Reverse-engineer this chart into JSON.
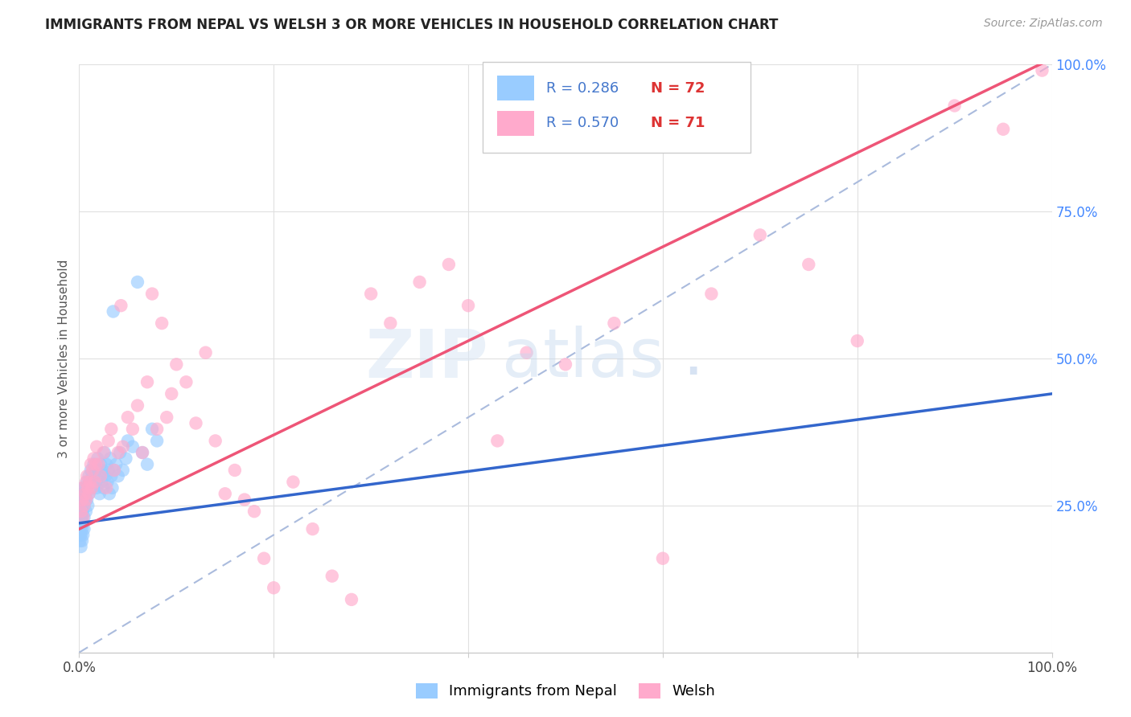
{
  "title": "IMMIGRANTS FROM NEPAL VS WELSH 3 OR MORE VEHICLES IN HOUSEHOLD CORRELATION CHART",
  "source_text": "Source: ZipAtlas.com",
  "ylabel": "3 or more Vehicles in Household",
  "xlim": [
    0,
    1.0
  ],
  "ylim": [
    0,
    1.0
  ],
  "xtick_values": [
    0.0,
    0.2,
    0.4,
    0.6,
    0.8,
    1.0
  ],
  "xtick_labels_shown": {
    "0.0": "0.0%",
    "1.0": "100.0%"
  },
  "ytick_right_vals": [
    0.0,
    0.25,
    0.5,
    0.75,
    1.0
  ],
  "ytick_right_labels": [
    "",
    "25.0%",
    "50.0%",
    "75.0%",
    "100.0%"
  ],
  "grid_color": "#e0e0e0",
  "background_color": "#ffffff",
  "nepal_color": "#99ccff",
  "welsh_color": "#ffaacc",
  "nepal_line_color": "#3366cc",
  "welsh_line_color": "#ee5577",
  "diagonal_color": "#aabbdd",
  "R_nepal": 0.286,
  "N_nepal": 72,
  "R_welsh": 0.57,
  "N_welsh": 71,
  "nepal_x": [
    0.0005,
    0.0008,
    0.001,
    0.0012,
    0.0015,
    0.0018,
    0.002,
    0.002,
    0.0022,
    0.0025,
    0.003,
    0.003,
    0.003,
    0.003,
    0.003,
    0.0035,
    0.004,
    0.004,
    0.004,
    0.004,
    0.005,
    0.005,
    0.005,
    0.005,
    0.006,
    0.006,
    0.007,
    0.007,
    0.008,
    0.008,
    0.009,
    0.009,
    0.01,
    0.01,
    0.011,
    0.012,
    0.013,
    0.014,
    0.015,
    0.016,
    0.017,
    0.018,
    0.019,
    0.02,
    0.021,
    0.022,
    0.023,
    0.024,
    0.025,
    0.026,
    0.027,
    0.028,
    0.029,
    0.03,
    0.031,
    0.032,
    0.033,
    0.034,
    0.035,
    0.036,
    0.038,
    0.04,
    0.042,
    0.045,
    0.048,
    0.05,
    0.055,
    0.06,
    0.065,
    0.07,
    0.075,
    0.08
  ],
  "nepal_y": [
    0.22,
    0.19,
    0.2,
    0.21,
    0.23,
    0.18,
    0.24,
    0.2,
    0.22,
    0.26,
    0.25,
    0.23,
    0.21,
    0.19,
    0.27,
    0.24,
    0.26,
    0.22,
    0.28,
    0.2,
    0.25,
    0.23,
    0.27,
    0.21,
    0.26,
    0.28,
    0.27,
    0.24,
    0.29,
    0.26,
    0.28,
    0.25,
    0.3,
    0.27,
    0.29,
    0.31,
    0.28,
    0.3,
    0.32,
    0.29,
    0.31,
    0.28,
    0.33,
    0.3,
    0.27,
    0.32,
    0.29,
    0.31,
    0.28,
    0.34,
    0.3,
    0.32,
    0.29,
    0.31,
    0.27,
    0.33,
    0.3,
    0.28,
    0.58,
    0.31,
    0.32,
    0.3,
    0.34,
    0.31,
    0.33,
    0.36,
    0.35,
    0.63,
    0.34,
    0.32,
    0.38,
    0.36
  ],
  "welsh_x": [
    0.002,
    0.003,
    0.004,
    0.004,
    0.005,
    0.006,
    0.007,
    0.007,
    0.008,
    0.009,
    0.01,
    0.011,
    0.012,
    0.013,
    0.014,
    0.015,
    0.016,
    0.017,
    0.018,
    0.02,
    0.022,
    0.025,
    0.028,
    0.03,
    0.033,
    0.036,
    0.04,
    0.043,
    0.045,
    0.05,
    0.055,
    0.06,
    0.065,
    0.07,
    0.075,
    0.08,
    0.085,
    0.09,
    0.095,
    0.1,
    0.11,
    0.12,
    0.13,
    0.14,
    0.15,
    0.16,
    0.17,
    0.18,
    0.19,
    0.2,
    0.22,
    0.24,
    0.26,
    0.28,
    0.3,
    0.32,
    0.35,
    0.38,
    0.4,
    0.43,
    0.46,
    0.5,
    0.55,
    0.6,
    0.65,
    0.7,
    0.75,
    0.8,
    0.9,
    0.95,
    0.99
  ],
  "welsh_y": [
    0.24,
    0.26,
    0.23,
    0.28,
    0.25,
    0.27,
    0.29,
    0.26,
    0.3,
    0.28,
    0.27,
    0.29,
    0.32,
    0.28,
    0.31,
    0.33,
    0.29,
    0.32,
    0.35,
    0.32,
    0.3,
    0.34,
    0.28,
    0.36,
    0.38,
    0.31,
    0.34,
    0.59,
    0.35,
    0.4,
    0.38,
    0.42,
    0.34,
    0.46,
    0.61,
    0.38,
    0.56,
    0.4,
    0.44,
    0.49,
    0.46,
    0.39,
    0.51,
    0.36,
    0.27,
    0.31,
    0.26,
    0.24,
    0.16,
    0.11,
    0.29,
    0.21,
    0.13,
    0.09,
    0.61,
    0.56,
    0.63,
    0.66,
    0.59,
    0.36,
    0.51,
    0.49,
    0.56,
    0.16,
    0.61,
    0.71,
    0.66,
    0.53,
    0.93,
    0.89,
    0.99
  ],
  "nepal_reg": [
    0.22,
    0.44
  ],
  "welsh_reg": [
    0.21,
    1.01
  ],
  "legend_R_color": "#4477cc",
  "legend_N_color": "#dd3333",
  "right_axis_color": "#4488ff",
  "title_fontsize": 12,
  "source_fontsize": 10,
  "axis_label_fontsize": 11,
  "tick_fontsize": 12,
  "legend_fontsize": 13
}
